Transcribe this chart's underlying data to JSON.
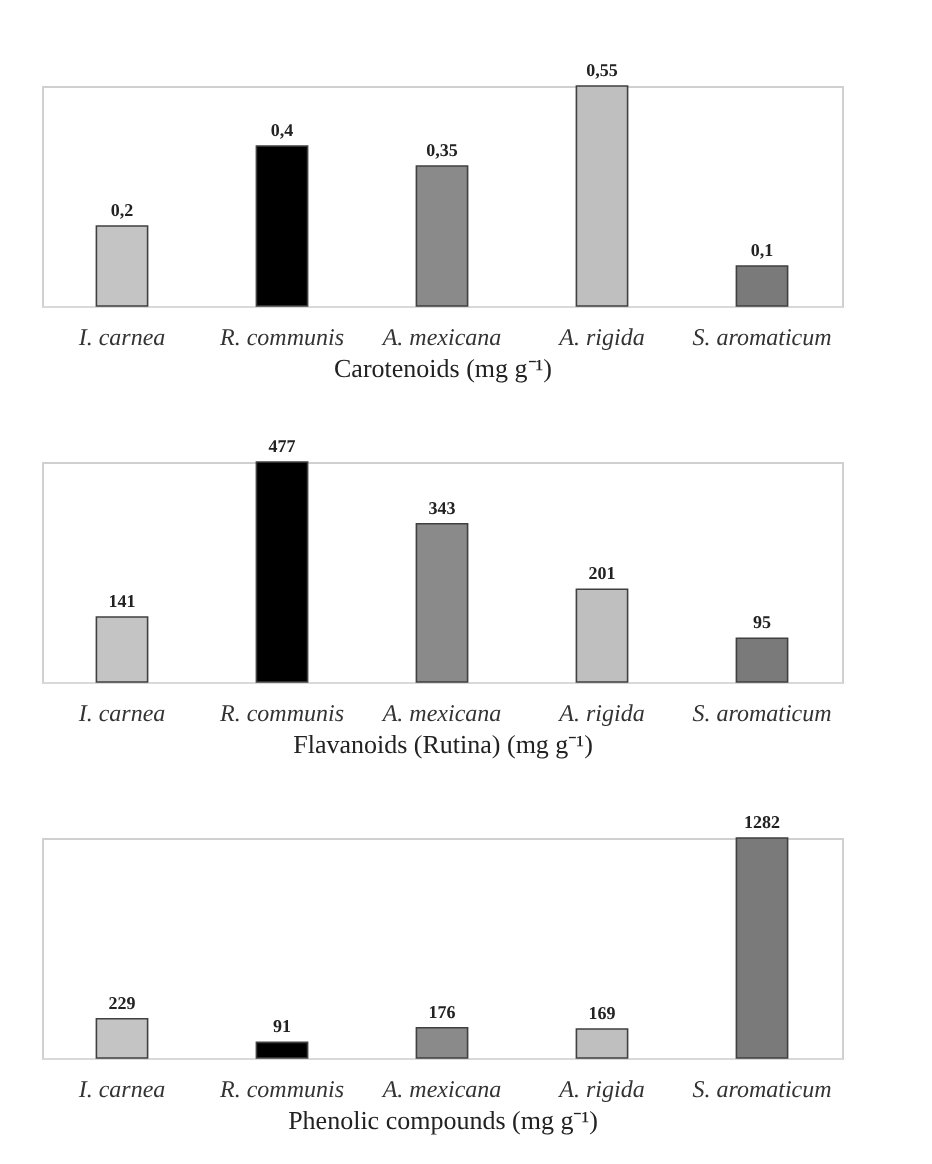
{
  "chart_data": [
    {
      "type": "bar",
      "xlabel": "Carotenoids (mg g⁻¹)",
      "categories": [
        "I. carnea",
        "R. communis",
        "A. mexicana",
        "A. rigida",
        "S. aromaticum"
      ],
      "values": [
        0.2,
        0.4,
        0.35,
        0.55,
        0.1
      ],
      "value_labels": [
        "0,2",
        "0,4",
        "0,35",
        "0,55",
        "0,1"
      ],
      "colors": [
        "#c4c4c4",
        "#000000",
        "#8a8a8a",
        "#bfbfbf",
        "#7a7a7a"
      ]
    },
    {
      "type": "bar",
      "xlabel": "Flavanoids (Rutina) (mg g⁻¹)",
      "categories": [
        "I. carnea",
        "R. communis",
        "A. mexicana",
        "A. rigida",
        "S. aromaticum"
      ],
      "values": [
        141,
        477,
        343,
        201,
        95
      ],
      "data_labels": true,
      "colors": [
        "#c4c4c4",
        "#000000",
        "#8a8a8a",
        "#bfbfbf",
        "#7a7a7a"
      ]
    },
    {
      "type": "bar",
      "xlabel": "Phenolic compounds (mg g⁻¹)",
      "categories": [
        "I. carnea",
        "R. communis",
        "A. mexicana",
        "A. rigida",
        "S. aromaticum"
      ],
      "values": [
        229,
        91,
        176,
        169,
        1282
      ],
      "data_labels": true,
      "colors": [
        "#c4c4c4",
        "#000000",
        "#8a8a8a",
        "#bfbfbf",
        "#7a7a7a"
      ]
    }
  ]
}
